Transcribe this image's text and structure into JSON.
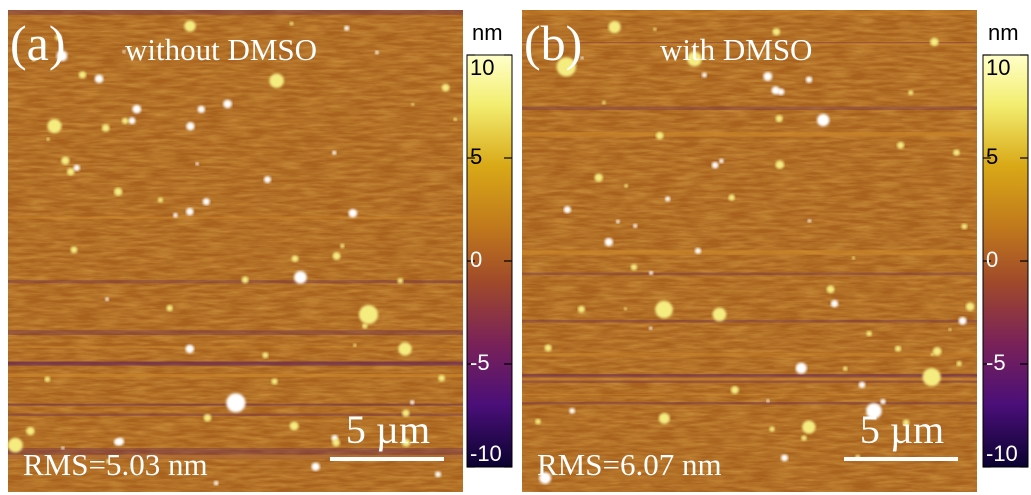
{
  "panels": [
    {
      "label": "(a)",
      "title": "without DMSO",
      "rms": "RMS=5.03 nm",
      "scale_bar": "5 µm",
      "colorbar": {
        "unit": "nm",
        "lim": [
          -10,
          10
        ],
        "ticks": [
          10,
          5,
          0,
          -5,
          -10
        ]
      }
    },
    {
      "label": "(b)",
      "title": "with DMSO",
      "rms": "RMS=6.07 nm",
      "scale_bar": "5 µm",
      "colorbar": {
        "unit": "nm",
        "lim": [
          -10,
          10
        ],
        "ticks": [
          10,
          5,
          0,
          -5,
          -10
        ]
      }
    }
  ]
}
